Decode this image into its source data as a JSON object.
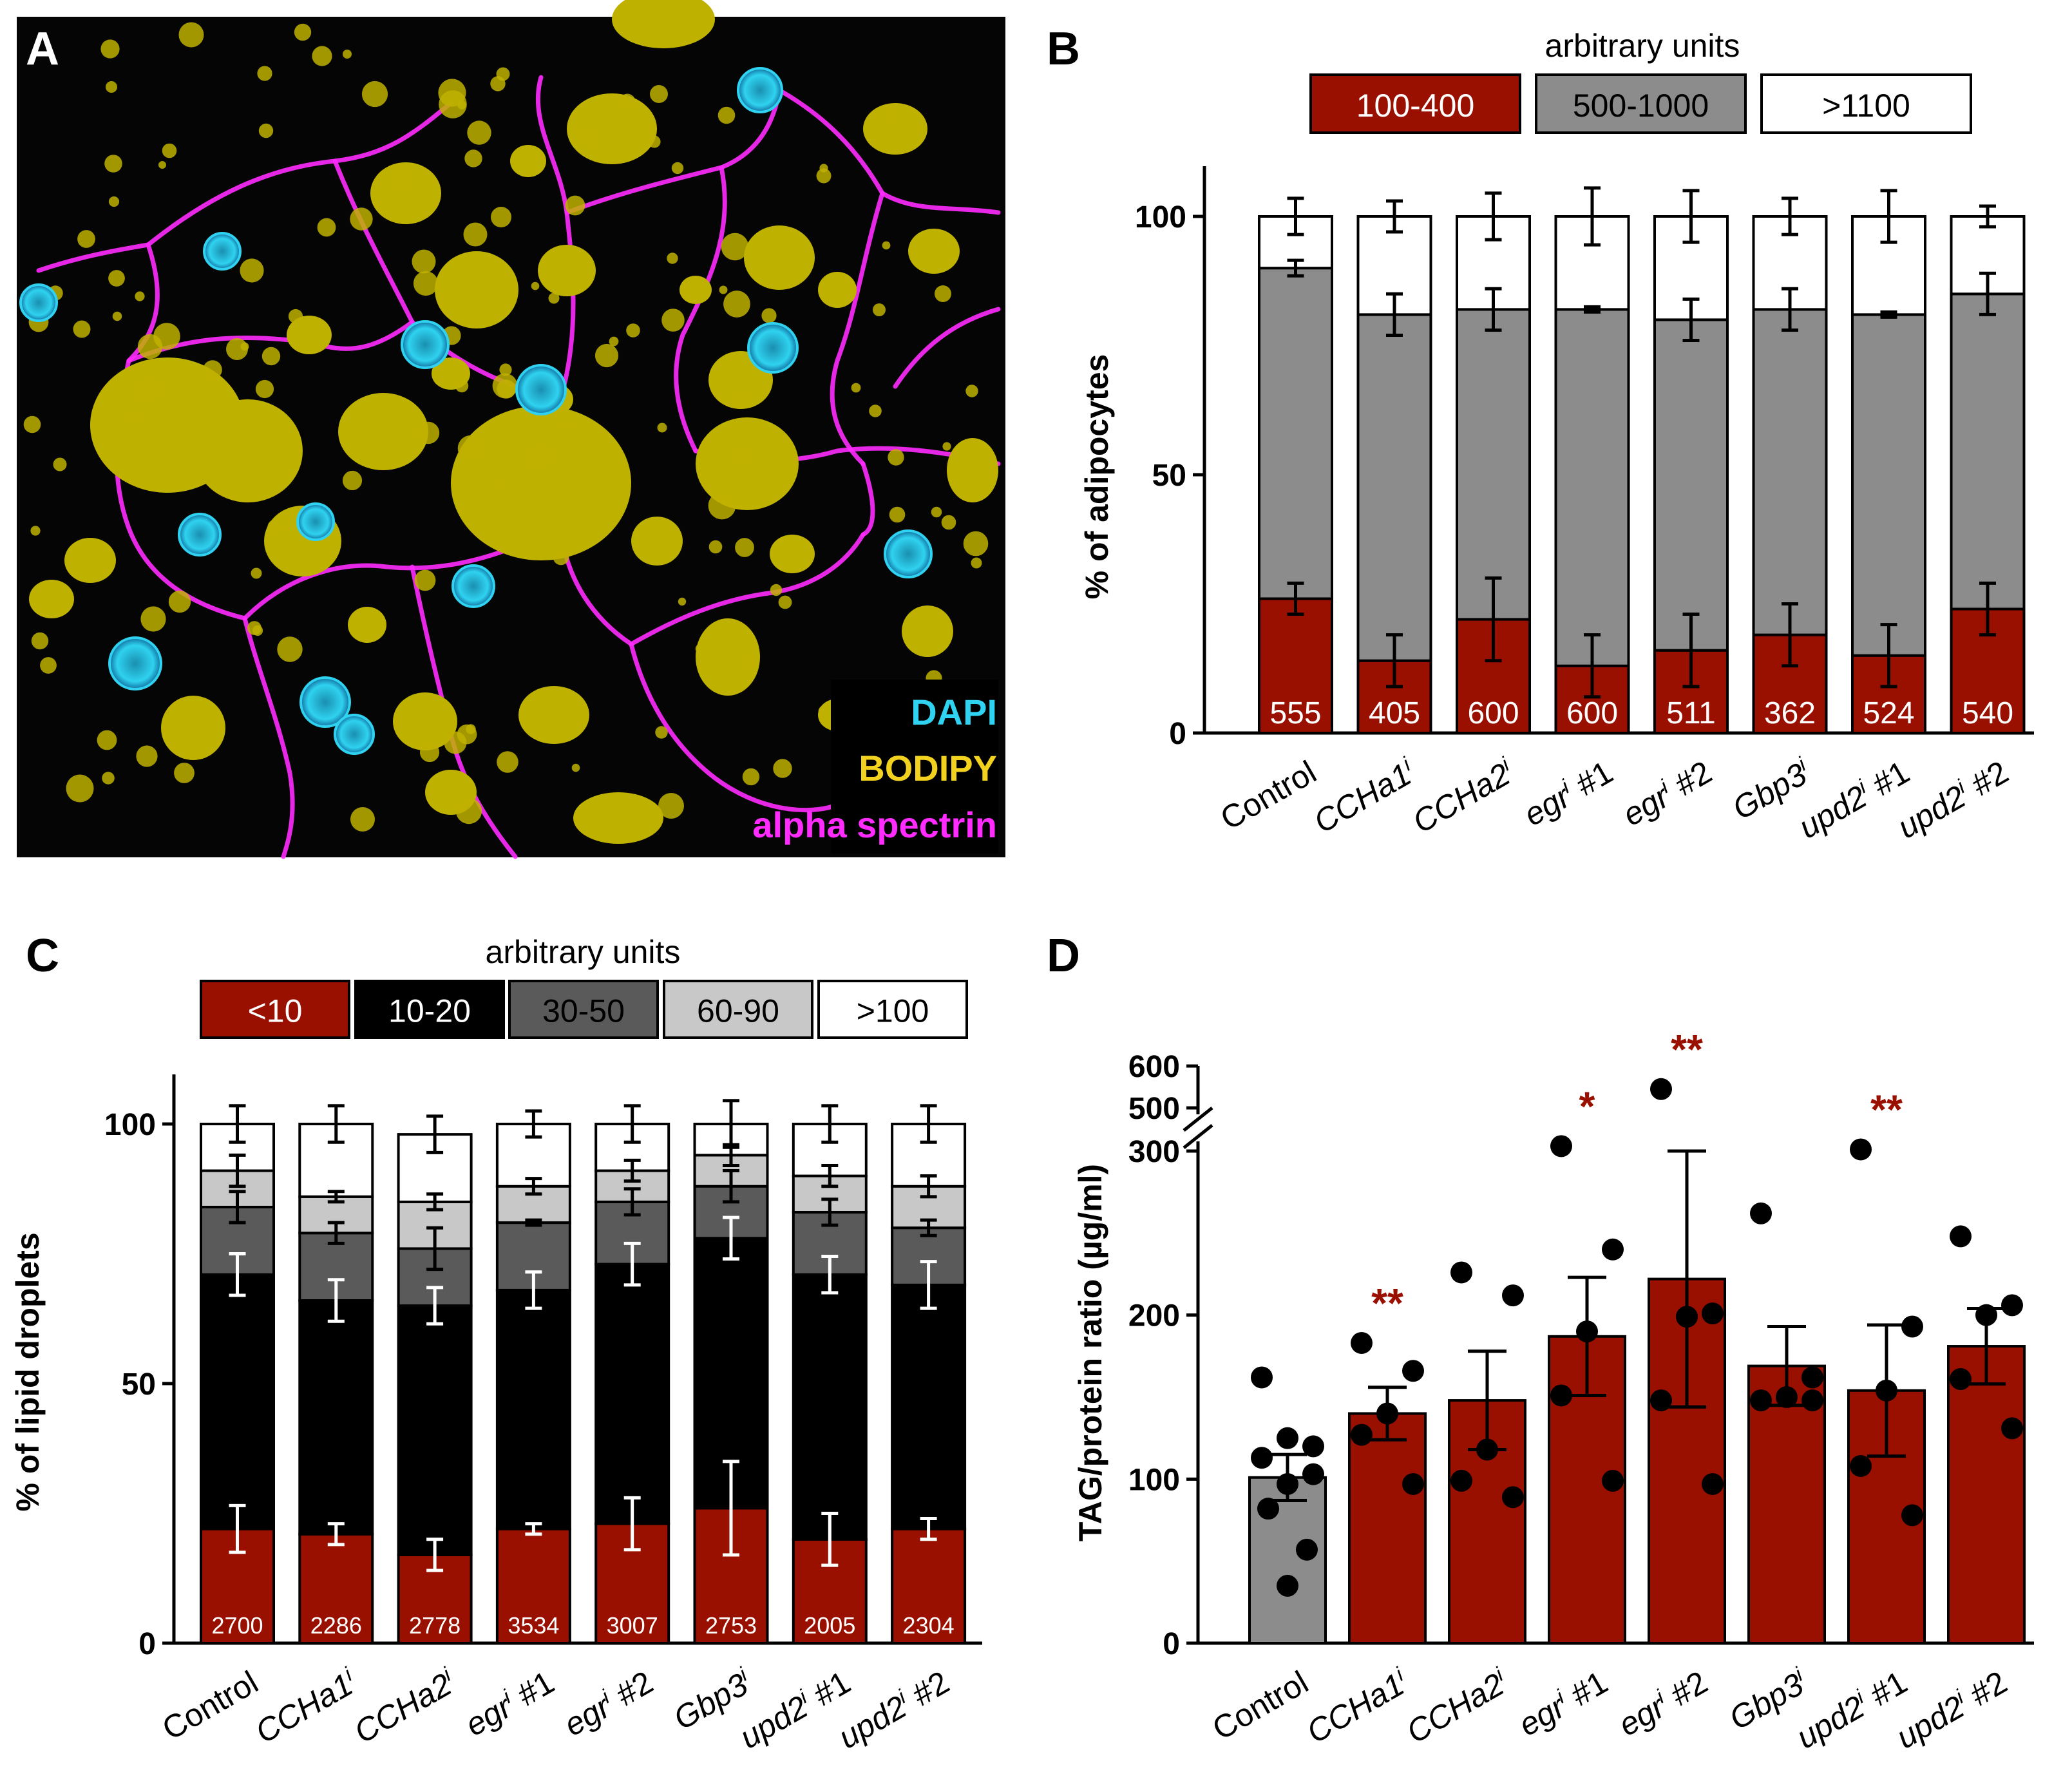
{
  "chart_data": [
    {
      "panel": "A",
      "type": "image",
      "channels": [
        {
          "label": "DAPI",
          "color": "#2fd2f0"
        },
        {
          "label": "BODIPY",
          "color": "#f2d21e"
        },
        {
          "label": "alpha spectrin",
          "color": "#ff2bff"
        }
      ]
    },
    {
      "panel": "B",
      "type": "stacked-bar",
      "legend_title": "arbitrary units",
      "categories": [
        "Control",
        "CCHa1",
        "CCHa2",
        "egr #1",
        "egr #2",
        "Gbp3",
        "upd2 #1",
        "upd2 #2"
      ],
      "category_labels": [
        {
          "base": "Control",
          "sup": "",
          "suffix": ""
        },
        {
          "base": "CCHa1",
          "sup": "i",
          "suffix": ""
        },
        {
          "base": "CCHa2",
          "sup": "i",
          "suffix": ""
        },
        {
          "base": "egr",
          "sup": "i",
          "suffix": " #1"
        },
        {
          "base": "egr",
          "sup": "i",
          "suffix": " #2"
        },
        {
          "base": "Gbp3",
          "sup": "i",
          "suffix": ""
        },
        {
          "base": "upd2",
          "sup": "i",
          "suffix": " #1"
        },
        {
          "base": "upd2",
          "sup": "i",
          "suffix": " #2"
        }
      ],
      "series": [
        {
          "name": "100-400",
          "color": "#9a1000",
          "values": [
            26,
            14,
            22,
            13,
            16,
            19,
            15,
            24
          ],
          "errors": [
            3,
            5,
            8,
            6,
            7,
            6,
            6,
            5
          ]
        },
        {
          "name": "500-1000",
          "color": "#8c8c8c",
          "values": [
            64,
            67,
            60,
            69,
            64,
            63,
            66,
            61
          ],
          "errors": [
            1.5,
            4,
            4,
            0.5,
            4,
            4,
            0.5,
            4
          ]
        },
        {
          "name": ">1100",
          "color": "#ffffff",
          "values": [
            10,
            19,
            18,
            18,
            20,
            18,
            19,
            15
          ],
          "errors": [
            3.5,
            3,
            4.5,
            5.5,
            5,
            3.5,
            5,
            2
          ]
        }
      ],
      "counts": [
        "555",
        "405",
        "600",
        "600",
        "511",
        "362",
        "524",
        "540"
      ],
      "ylabel": "% of adipocytes",
      "ylim": [
        0,
        100
      ],
      "yticks": [
        "0",
        "50",
        "100"
      ]
    },
    {
      "panel": "C",
      "type": "stacked-bar",
      "legend_title": "arbitrary units",
      "categories": [
        "Control",
        "CCHa1",
        "CCHa2",
        "egr #1",
        "egr #2",
        "Gbp3",
        "upd2 #1",
        "upd2 #2"
      ],
      "category_labels": [
        {
          "base": "Control",
          "sup": "",
          "suffix": ""
        },
        {
          "base": "CCHa1",
          "sup": "i",
          "suffix": ""
        },
        {
          "base": "CCHa2",
          "sup": "i",
          "suffix": ""
        },
        {
          "base": "egr",
          "sup": "i",
          "suffix": " #1"
        },
        {
          "base": "egr",
          "sup": "i",
          "suffix": " #2"
        },
        {
          "base": "Gbp3",
          "sup": "i",
          "suffix": ""
        },
        {
          "base": "upd2",
          "sup": "i",
          "suffix": " #1"
        },
        {
          "base": "upd2",
          "sup": "i",
          "suffix": " #2"
        }
      ],
      "series": [
        {
          "name": "<10",
          "color": "#9a1000",
          "values": [
            22,
            21,
            17,
            22,
            23,
            26,
            20,
            22
          ],
          "errors": [
            4.5,
            2,
            3,
            1,
            5,
            9,
            5,
            2
          ]
        },
        {
          "name": "10-20",
          "color": "#000000",
          "values": [
            49,
            45,
            48,
            46,
            50,
            52,
            51,
            47
          ],
          "errors": [
            4,
            4,
            3.5,
            3.5,
            4,
            4,
            3.5,
            4.5
          ]
        },
        {
          "name": "30-50",
          "color": "#5a5a5a",
          "values": [
            13,
            13,
            11,
            13,
            12,
            10,
            12,
            11
          ],
          "errors": [
            3,
            2,
            4,
            0.5,
            2.5,
            3,
            2.5,
            1.5
          ]
        },
        {
          "name": "60-90",
          "color": "#c8c8c8",
          "values": [
            7,
            7,
            9,
            7,
            6,
            6,
            7,
            8
          ],
          "errors": [
            3,
            1,
            1.5,
            1.5,
            2,
            2,
            2,
            2
          ]
        },
        {
          "name": ">100",
          "color": "#ffffff",
          "values": [
            9,
            14,
            13,
            12,
            9,
            6,
            10,
            12
          ],
          "errors": [
            3.5,
            3.5,
            3.5,
            2.5,
            3.5,
            4.5,
            3.5,
            3.5
          ]
        }
      ],
      "counts": [
        "2700",
        "2286",
        "2778",
        "3534",
        "3007",
        "2753",
        "2005",
        "2304"
      ],
      "ylabel": "% of lipid droplets",
      "ylim": [
        0,
        100
      ],
      "yticks": [
        "0",
        "50",
        "100"
      ]
    },
    {
      "panel": "D",
      "type": "bar-scatter",
      "categories": [
        "Control",
        "CCHa1",
        "CCHa2",
        "egr #1",
        "egr #2",
        "Gbp3",
        "upd2 #1",
        "upd2 #2"
      ],
      "category_labels": [
        {
          "base": "Control",
          "sup": "",
          "suffix": ""
        },
        {
          "base": "CCHa1",
          "sup": "i",
          "suffix": ""
        },
        {
          "base": "CCHa2",
          "sup": "i",
          "suffix": ""
        },
        {
          "base": "egr",
          "sup": "i",
          "suffix": " #1"
        },
        {
          "base": "egr",
          "sup": "i",
          "suffix": " #2"
        },
        {
          "base": "Gbp3",
          "sup": "i",
          "suffix": ""
        },
        {
          "base": "upd2",
          "sup": "i",
          "suffix": " #1"
        },
        {
          "base": "upd2",
          "sup": "i",
          "suffix": " #2"
        }
      ],
      "means": [
        101,
        140,
        148,
        187,
        222,
        169,
        154,
        181
      ],
      "sem": [
        14,
        16,
        30,
        36,
        78,
        24,
        40,
        23
      ],
      "bar_colors": [
        "#8c8c8c",
        "#9a1000",
        "#9a1000",
        "#9a1000",
        "#9a1000",
        "#9a1000",
        "#9a1000",
        "#9a1000"
      ],
      "points": [
        [
          162,
          120,
          125,
          113,
          103,
          97,
          82,
          57,
          35
        ],
        [
          183,
          166,
          140,
          127,
          97
        ],
        [
          226,
          212,
          118,
          99,
          89
        ],
        [
          303,
          240,
          190,
          151,
          99
        ],
        [
          545,
          201,
          199,
          148,
          97
        ],
        [
          262,
          162,
          150,
          148,
          148
        ],
        [
          301,
          193,
          154,
          108,
          78
        ],
        [
          248,
          206,
          200,
          161,
          131
        ]
      ],
      "significance": [
        "",
        "**",
        "",
        "*",
        "**",
        "",
        "**",
        ""
      ],
      "ylabel": "TAG/protein ratio (µg/ml)",
      "ylim_lower": [
        0,
        300
      ],
      "ylim_upper": [
        500,
        600
      ],
      "yticks": [
        "0",
        "100",
        "200",
        "300",
        "500",
        "600"
      ]
    }
  ]
}
